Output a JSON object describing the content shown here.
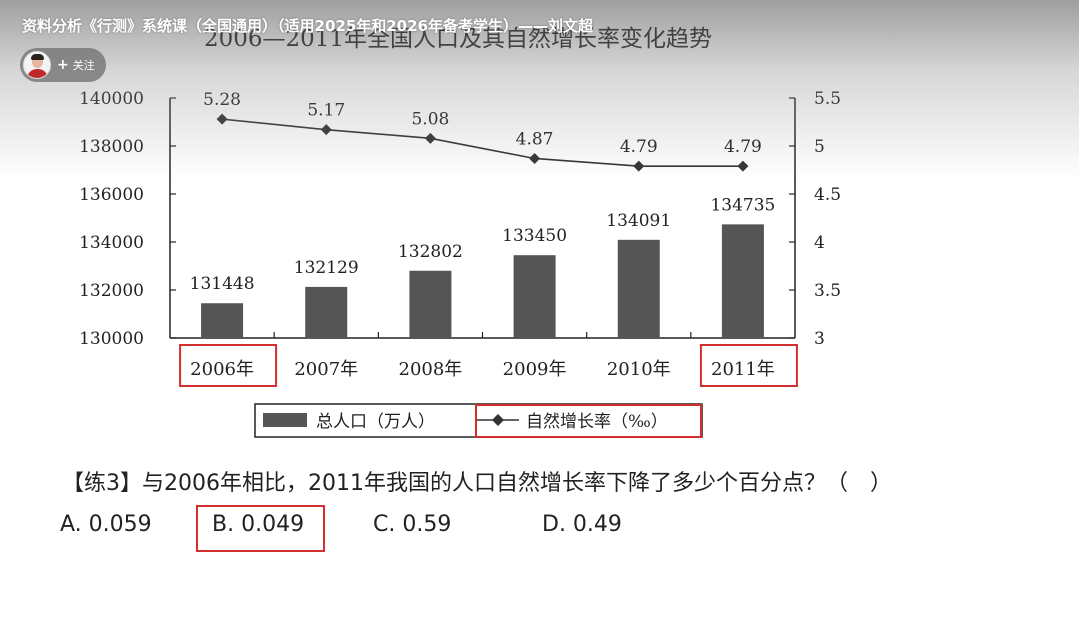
{
  "overlay": {
    "course_title": "资料分析《行测》系统课（全国通用）（适用2025年和2026年备考学生）——刘文超",
    "follow_label": "关注",
    "follow_plus": "+"
  },
  "chart_data": {
    "type": "bar+line",
    "title": "2006—2011年全国人口及其自然增长率变化趋势",
    "categories": [
      "2006年",
      "2007年",
      "2008年",
      "2009年",
      "2010年",
      "2011年"
    ],
    "series": [
      {
        "name": "总人口（万人）",
        "type": "bar",
        "axis": "left",
        "values": [
          131448,
          132129,
          132802,
          133450,
          134091,
          134735
        ]
      },
      {
        "name": "自然增长率（‰）",
        "type": "line",
        "axis": "right",
        "values": [
          5.28,
          5.17,
          5.08,
          4.87,
          4.79,
          4.79
        ]
      }
    ],
    "left_axis": {
      "ylim": [
        130000,
        140000
      ],
      "ticks": [
        "140000",
        "138000",
        "136000",
        "134000",
        "132000",
        "130000"
      ]
    },
    "right_axis": {
      "ylim": [
        3,
        5.5
      ],
      "ticks": [
        "5.5",
        "5",
        "4.5",
        "4",
        "3.5",
        "3"
      ]
    },
    "bar_labels": [
      "131448",
      "132129",
      "132802",
      "133450",
      "134091",
      "134735"
    ],
    "line_labels": [
      "5.28",
      "5.17",
      "5.08",
      "4.87",
      "4.79",
      "4.79"
    ],
    "highlighted_categories": [
      "2006年",
      "2011年"
    ],
    "highlighted_legend": "自然增长率（‰）"
  },
  "question": {
    "text": "【练3】与2006年相比，2011年我国的人口自然增长率下降了多少个百分点？（　）",
    "options": [
      {
        "label": "A. 0.059"
      },
      {
        "label": "B. 0.049"
      },
      {
        "label": "C. 0.59"
      },
      {
        "label": "D. 0.49"
      }
    ],
    "highlighted_option": "B. 0.049"
  },
  "colors": {
    "bar": "#555555",
    "line": "#333333",
    "highlight": "#d32f2f",
    "text": "#222222"
  }
}
